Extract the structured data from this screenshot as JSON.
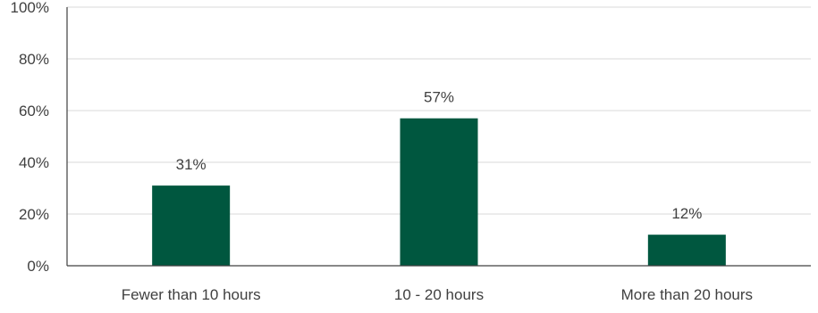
{
  "chart_data": {
    "type": "bar",
    "title": "",
    "xlabel": "",
    "ylabel": "",
    "categories": [
      "Fewer than 10 hours",
      "10 - 20 hours",
      "More than 20 hours"
    ],
    "values": [
      31,
      57,
      12
    ],
    "data_labels": [
      "31%",
      "57%",
      "12%"
    ],
    "ylim": [
      0,
      100
    ],
    "y_ticks": [
      0,
      20,
      40,
      60,
      80,
      100
    ],
    "y_tick_labels": [
      "0%",
      "20%",
      "40%",
      "60%",
      "80%",
      "100%"
    ],
    "grid": true,
    "legend": "none",
    "bar_color": "#00573f"
  }
}
